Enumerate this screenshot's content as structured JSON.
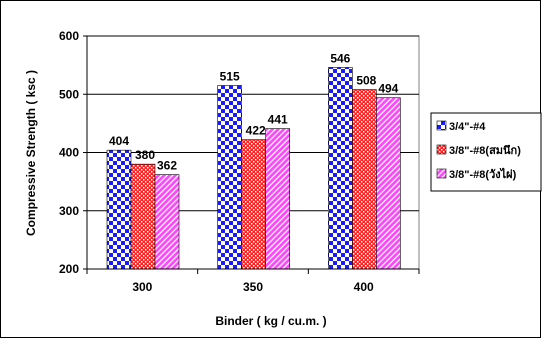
{
  "chart_data": {
    "type": "bar",
    "title": "",
    "xlabel": "Binder ( kg / cu.m. )",
    "ylabel": "Compressive Strength ( ksc )",
    "categories": [
      "300",
      "350",
      "400"
    ],
    "ylim": [
      200,
      600
    ],
    "yticks": [
      "200",
      "300",
      "400",
      "500",
      "600"
    ],
    "grid": true,
    "legend_position": "right",
    "series": [
      {
        "name": "3/4\"-#4",
        "values": [
          404,
          515,
          546
        ],
        "labels": [
          "404",
          "515",
          "546"
        ],
        "color": "#1a1aff",
        "pattern": "checker"
      },
      {
        "name": "3/8\"-#8(สมนึก)",
        "values": [
          380,
          422,
          508
        ],
        "labels": [
          "380",
          "422",
          "508"
        ],
        "color": "#ff2020",
        "pattern": "dots"
      },
      {
        "name": "3/8\"-#8(วังไผ่)",
        "values": [
          362,
          441,
          494
        ],
        "labels": [
          "362",
          "441",
          "494"
        ],
        "color": "#ff44ff",
        "pattern": "diagonal"
      }
    ]
  }
}
